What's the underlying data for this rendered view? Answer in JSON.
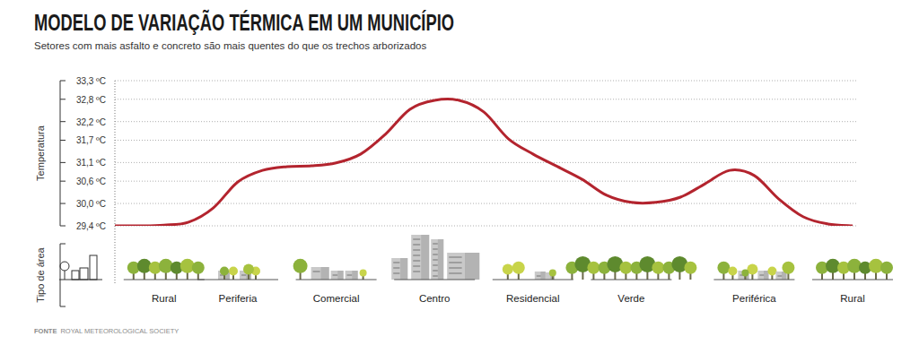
{
  "chart_data": {
    "type": "line",
    "title": "MODELO DE VARIAÇÃO TÉRMICA EM UM MUNICÍPIO",
    "subtitle": "Setores com mais asfalto e concreto são mais quentes do que os trechos arborizados",
    "y_label": "Temperatura",
    "x_label": "Tipo de área",
    "source_label": "FONTE",
    "source": "ROYAL METEOROLOGICAL SOCIETY",
    "categories": [
      null,
      null,
      "Rural",
      null,
      null,
      "Periferia",
      null,
      null,
      null,
      "Comercial",
      null,
      null,
      null,
      "Centro",
      null,
      null,
      null,
      "Residencial",
      null,
      null,
      null,
      "Verde",
      null,
      null,
      null,
      null,
      "Periférica",
      null,
      null,
      null,
      "Rural"
    ],
    "values": [
      29.4,
      29.4,
      29.42,
      29.5,
      29.88,
      30.58,
      30.89,
      30.99,
      31.01,
      31.09,
      31.33,
      31.86,
      32.53,
      32.77,
      32.77,
      32.46,
      31.74,
      31.33,
      30.99,
      30.65,
      30.22,
      30.03,
      30.03,
      30.17,
      30.53,
      30.89,
      30.75,
      30.12,
      29.64,
      29.45,
      29.4
    ],
    "color": "#b3242e",
    "ylim": [
      29.4,
      33.3
    ],
    "yticks": [
      {
        "value": 29.4,
        "label": "29,4 ºC"
      },
      {
        "value": 30.0,
        "label": "30,0 ºC"
      },
      {
        "value": 30.6,
        "label": "30,6 ºC"
      },
      {
        "value": 31.1,
        "label": "31,1 ºC"
      },
      {
        "value": 31.7,
        "label": "31,7 ºC"
      },
      {
        "value": 32.2,
        "label": "32,2 ºC"
      },
      {
        "value": 32.8,
        "label": "32,8 ºC"
      },
      {
        "value": 33.3,
        "label": "33,3 ºC"
      }
    ],
    "grid": true
  }
}
